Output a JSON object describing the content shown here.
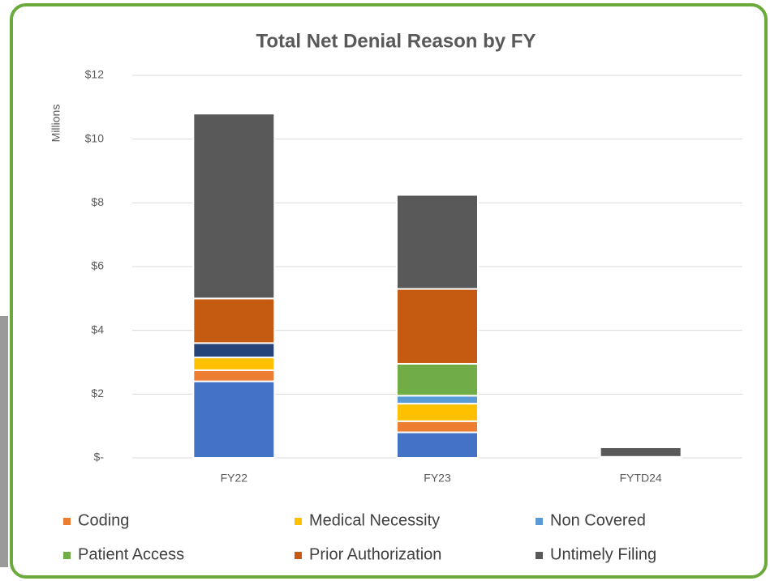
{
  "chart_data": {
    "type": "stacked_bar",
    "title": "Total Net Denial Reason by FY",
    "y_label": "Millions",
    "categories": [
      "FY22",
      "FY23",
      "FYTD24"
    ],
    "series": [
      {
        "color": "#4472c4",
        "values": [
          2.4,
          0.8,
          0
        ]
      },
      {
        "name": "Coding",
        "color": "#ed7d31",
        "values": [
          0.35,
          0.35,
          0
        ]
      },
      {
        "name": "Medical Necessity",
        "color": "#ffc000",
        "values": [
          0.4,
          0.55,
          0
        ]
      },
      {
        "name": "Non Covered",
        "color": "#5b9bd5",
        "values": [
          0,
          0.25,
          0
        ]
      },
      {
        "name": "Patient Access",
        "color": "#70ad47",
        "values": [
          0,
          1.0,
          0
        ]
      },
      {
        "color": "#264478",
        "values": [
          0.45,
          0,
          0
        ]
      },
      {
        "name": "Prior Authorization",
        "color": "#c55a11",
        "values": [
          1.4,
          2.35,
          0.03
        ]
      },
      {
        "name": "Untimely Filing",
        "color": "#595959",
        "values": [
          5.8,
          2.95,
          0.3
        ]
      }
    ],
    "ylim": [
      0,
      12
    ],
    "yticks": [
      {
        "value": 0,
        "label": "$-"
      },
      {
        "value": 2,
        "label": "$2"
      },
      {
        "value": 4,
        "label": "$4"
      },
      {
        "value": 6,
        "label": "$6"
      },
      {
        "value": 8,
        "label": "$8"
      },
      {
        "value": 10,
        "label": "$10"
      },
      {
        "value": 12,
        "label": "$12"
      }
    ],
    "grid": true
  }
}
